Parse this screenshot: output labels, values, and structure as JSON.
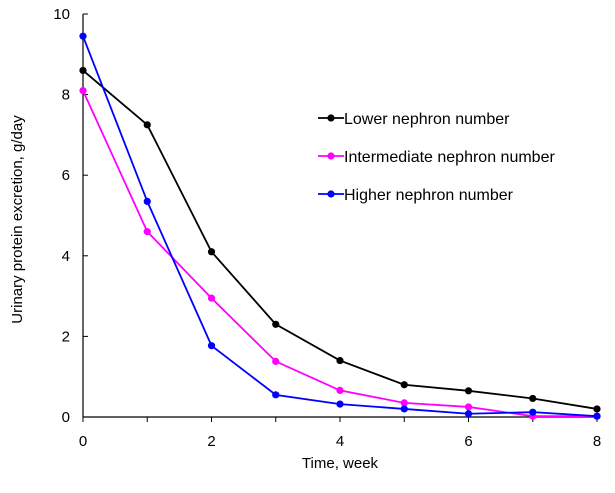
{
  "chart_data": {
    "type": "line",
    "xlabel": "Time, week",
    "ylabel": "Urinary protein excretion, g/day",
    "xlim": [
      0,
      8
    ],
    "ylim": [
      0,
      10
    ],
    "xticks": [
      0,
      2,
      4,
      6,
      8
    ],
    "yticks": [
      0,
      2,
      4,
      6,
      8,
      10
    ],
    "grid": false,
    "legend_position": "center-right",
    "x": [
      0,
      1,
      2,
      3,
      4,
      5,
      6,
      7,
      8
    ],
    "series": [
      {
        "name": "Lower nephron number",
        "color": "#000000",
        "values": [
          8.6,
          7.25,
          4.1,
          2.3,
          1.4,
          0.8,
          0.65,
          0.46,
          0.2
        ]
      },
      {
        "name": "Intermediate nephron number",
        "color": "#ff00ff",
        "values": [
          8.1,
          4.6,
          2.95,
          1.38,
          0.66,
          0.35,
          0.25,
          0.02,
          0.02
        ]
      },
      {
        "name": "Higher nephron number",
        "color": "#0000ff",
        "values": [
          9.45,
          5.35,
          1.77,
          0.55,
          0.32,
          0.2,
          0.08,
          0.12,
          0.02
        ]
      }
    ]
  }
}
